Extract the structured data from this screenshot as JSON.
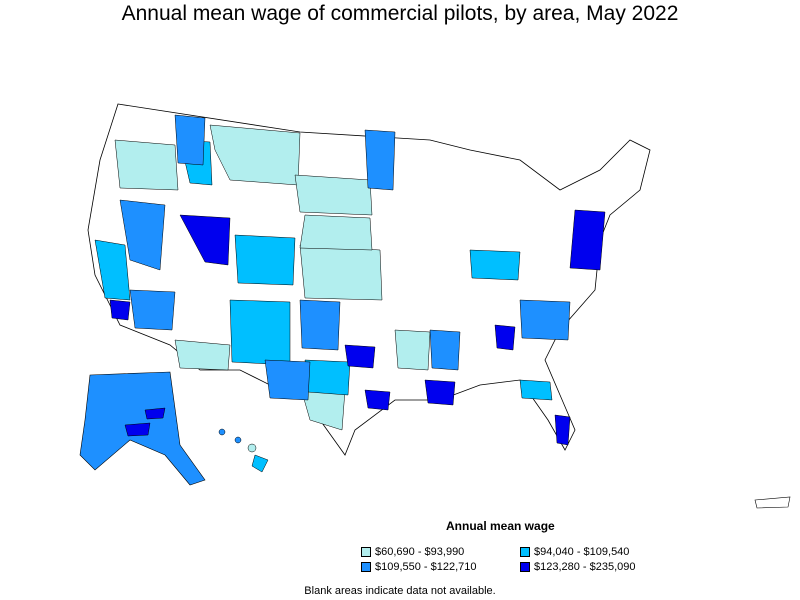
{
  "title": "Annual mean wage of commercial pilots, by area, May 2022",
  "legend": {
    "title": "Annual mean wage",
    "items": [
      {
        "label": "$60,690 - $93,990",
        "color": "#b2eeee"
      },
      {
        "label": "$94,040 - $109,540",
        "color": "#00bfff"
      },
      {
        "label": "$109,550 - $122,710",
        "color": "#1e90ff"
      },
      {
        "label": "$123,280 - $235,090",
        "color": "#0000ee"
      }
    ]
  },
  "footnote": "Blank areas indicate data not available.",
  "colors": {
    "tier1": "#b2eeee",
    "tier2": "#00bfff",
    "tier3": "#1e90ff",
    "tier4": "#0000ee",
    "blank": "#ffffff",
    "border": "#000000"
  }
}
